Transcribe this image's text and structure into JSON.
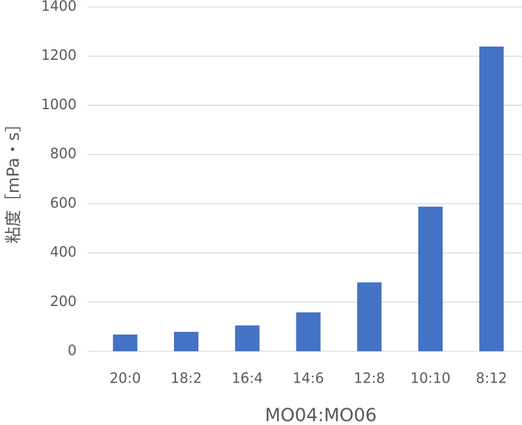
{
  "chart_data": {
    "type": "bar",
    "x_label": "MO04:MO06",
    "y_label": "粘度［mPa・s］",
    "categories": [
      "20:0",
      "18:2",
      "16:4",
      "14:6",
      "12:8",
      "10:10",
      "8:12"
    ],
    "values": [
      68,
      79,
      105,
      158,
      280,
      588,
      1239
    ],
    "color": "#4472c4",
    "ylim": [
      0,
      1400
    ],
    "yticks": [
      0,
      200,
      400,
      600,
      800,
      1000,
      1200,
      1400
    ],
    "grid": true
  }
}
